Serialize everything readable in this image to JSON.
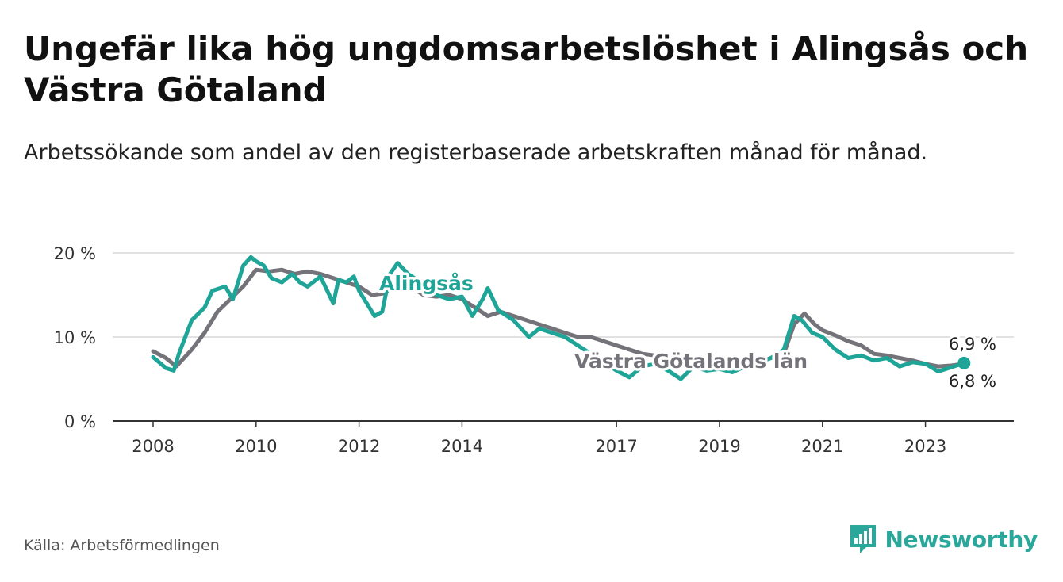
{
  "header": {
    "title": "Ungefär lika hög ungdomsarbetslöshet i Alingsås och Västra Götaland",
    "subtitle": "Arbetssökande som andel av den registerbaserade arbetskraften månad för månad."
  },
  "footer": {
    "source": "Källa: Arbetsförmedlingen",
    "brand": "Newsworthy"
  },
  "colors": {
    "alingsas": "#1fa597",
    "vastra": "#75737a",
    "grid": "#d9d9d9",
    "axis": "#333333"
  },
  "chart_data": {
    "type": "line",
    "title": "Ungefär lika hög ungdomsarbetslöshet i Alingsås och Västra Götaland",
    "xlabel": "",
    "ylabel": "",
    "x_tick_labels": [
      "2008",
      "2010",
      "2012",
      "2014",
      "2017",
      "2019",
      "2021",
      "2023"
    ],
    "x_tick_values": [
      2008.0,
      2010.0,
      2012.0,
      2014.0,
      2017.0,
      2019.0,
      2021.0,
      2023.0
    ],
    "y_tick_labels": [
      "0 %",
      "10 %",
      "20 %"
    ],
    "y_tick_values": [
      0,
      10,
      20
    ],
    "xlim": [
      2008.0,
      2023.9
    ],
    "ylim": [
      0,
      20
    ],
    "grid": true,
    "series": [
      {
        "name": "Alingsås",
        "label": "Alingsås",
        "end_label": "6,9 %",
        "x": [
          2008.0,
          2008.25,
          2008.4,
          2008.5,
          2008.75,
          2009.0,
          2009.15,
          2009.4,
          2009.55,
          2009.75,
          2009.9,
          2010.0,
          2010.15,
          2010.3,
          2010.5,
          2010.7,
          2010.85,
          2011.0,
          2011.25,
          2011.5,
          2011.6,
          2011.75,
          2011.9,
          2012.0,
          2012.15,
          2012.3,
          2012.45,
          2012.6,
          2012.75,
          2012.95,
          2013.2,
          2013.5,
          2013.75,
          2014.0,
          2014.2,
          2014.4,
          2014.5,
          2014.7,
          2015.0,
          2015.15,
          2015.3,
          2015.5,
          2015.75,
          2016.0,
          2016.25,
          2016.5,
          2016.75,
          2017.0,
          2017.25,
          2017.5,
          2017.75,
          2018.0,
          2018.25,
          2018.5,
          2018.75,
          2019.0,
          2019.25,
          2019.5,
          2019.75,
          2020.0,
          2020.25,
          2020.45,
          2020.6,
          2020.8,
          2021.0,
          2021.25,
          2021.5,
          2021.75,
          2022.0,
          2022.25,
          2022.5,
          2022.75,
          2023.0,
          2023.25,
          2023.5,
          2023.75
        ],
        "values": [
          7.6,
          6.3,
          6.0,
          8.0,
          12.0,
          13.5,
          15.5,
          16.0,
          14.5,
          18.5,
          19.5,
          19.0,
          18.5,
          17.0,
          16.5,
          17.5,
          16.5,
          16.0,
          17.2,
          14.0,
          16.8,
          16.5,
          17.2,
          15.5,
          14.0,
          12.5,
          13.0,
          17.5,
          18.8,
          17.5,
          16.5,
          15.0,
          14.5,
          14.8,
          12.5,
          14.5,
          15.8,
          13.2,
          12.0,
          11.0,
          10.0,
          11.0,
          10.5,
          10.0,
          9.0,
          8.0,
          7.0,
          6.0,
          5.2,
          6.5,
          6.8,
          6.0,
          5.0,
          6.5,
          6.0,
          6.2,
          5.8,
          6.5,
          7.0,
          7.5,
          8.5,
          12.5,
          12.0,
          10.5,
          10.0,
          8.5,
          7.5,
          7.8,
          7.2,
          7.5,
          6.5,
          7.0,
          6.8,
          5.9,
          6.4,
          6.9
        ]
      },
      {
        "name": "Västra Götalands län",
        "label": "Västra Götalands län",
        "end_label": "6,8 %",
        "x": [
          2008.0,
          2008.25,
          2008.45,
          2008.75,
          2009.0,
          2009.25,
          2009.5,
          2009.75,
          2010.0,
          2010.25,
          2010.5,
          2010.75,
          2011.0,
          2011.25,
          2011.5,
          2011.75,
          2012.0,
          2012.25,
          2012.5,
          2012.75,
          2013.0,
          2013.25,
          2013.5,
          2013.75,
          2014.0,
          2014.25,
          2014.5,
          2014.75,
          2015.0,
          2015.25,
          2015.5,
          2015.75,
          2016.0,
          2016.25,
          2016.5,
          2016.75,
          2017.0,
          2017.25,
          2017.5,
          2017.75,
          2018.0,
          2018.25,
          2018.5,
          2018.75,
          2019.0,
          2019.25,
          2019.5,
          2019.75,
          2020.0,
          2020.25,
          2020.45,
          2020.65,
          2020.85,
          2021.0,
          2021.25,
          2021.5,
          2021.75,
          2022.0,
          2022.25,
          2022.5,
          2022.75,
          2023.0,
          2023.25,
          2023.5,
          2023.75
        ],
        "values": [
          8.3,
          7.5,
          6.5,
          8.5,
          10.5,
          13.0,
          14.5,
          16.0,
          18.0,
          17.8,
          18.0,
          17.5,
          17.8,
          17.5,
          17.0,
          16.5,
          16.0,
          15.0,
          15.2,
          16.5,
          16.0,
          15.0,
          14.8,
          15.0,
          14.5,
          13.5,
          12.5,
          13.0,
          12.5,
          12.0,
          11.5,
          11.0,
          10.5,
          10.0,
          10.0,
          9.5,
          9.0,
          8.5,
          8.0,
          7.8,
          7.5,
          7.0,
          7.0,
          6.8,
          6.5,
          6.5,
          6.8,
          7.0,
          7.5,
          8.0,
          11.5,
          12.8,
          11.5,
          10.8,
          10.2,
          9.5,
          9.0,
          8.0,
          7.8,
          7.5,
          7.2,
          6.8,
          6.5,
          6.6,
          6.8
        ]
      }
    ]
  }
}
